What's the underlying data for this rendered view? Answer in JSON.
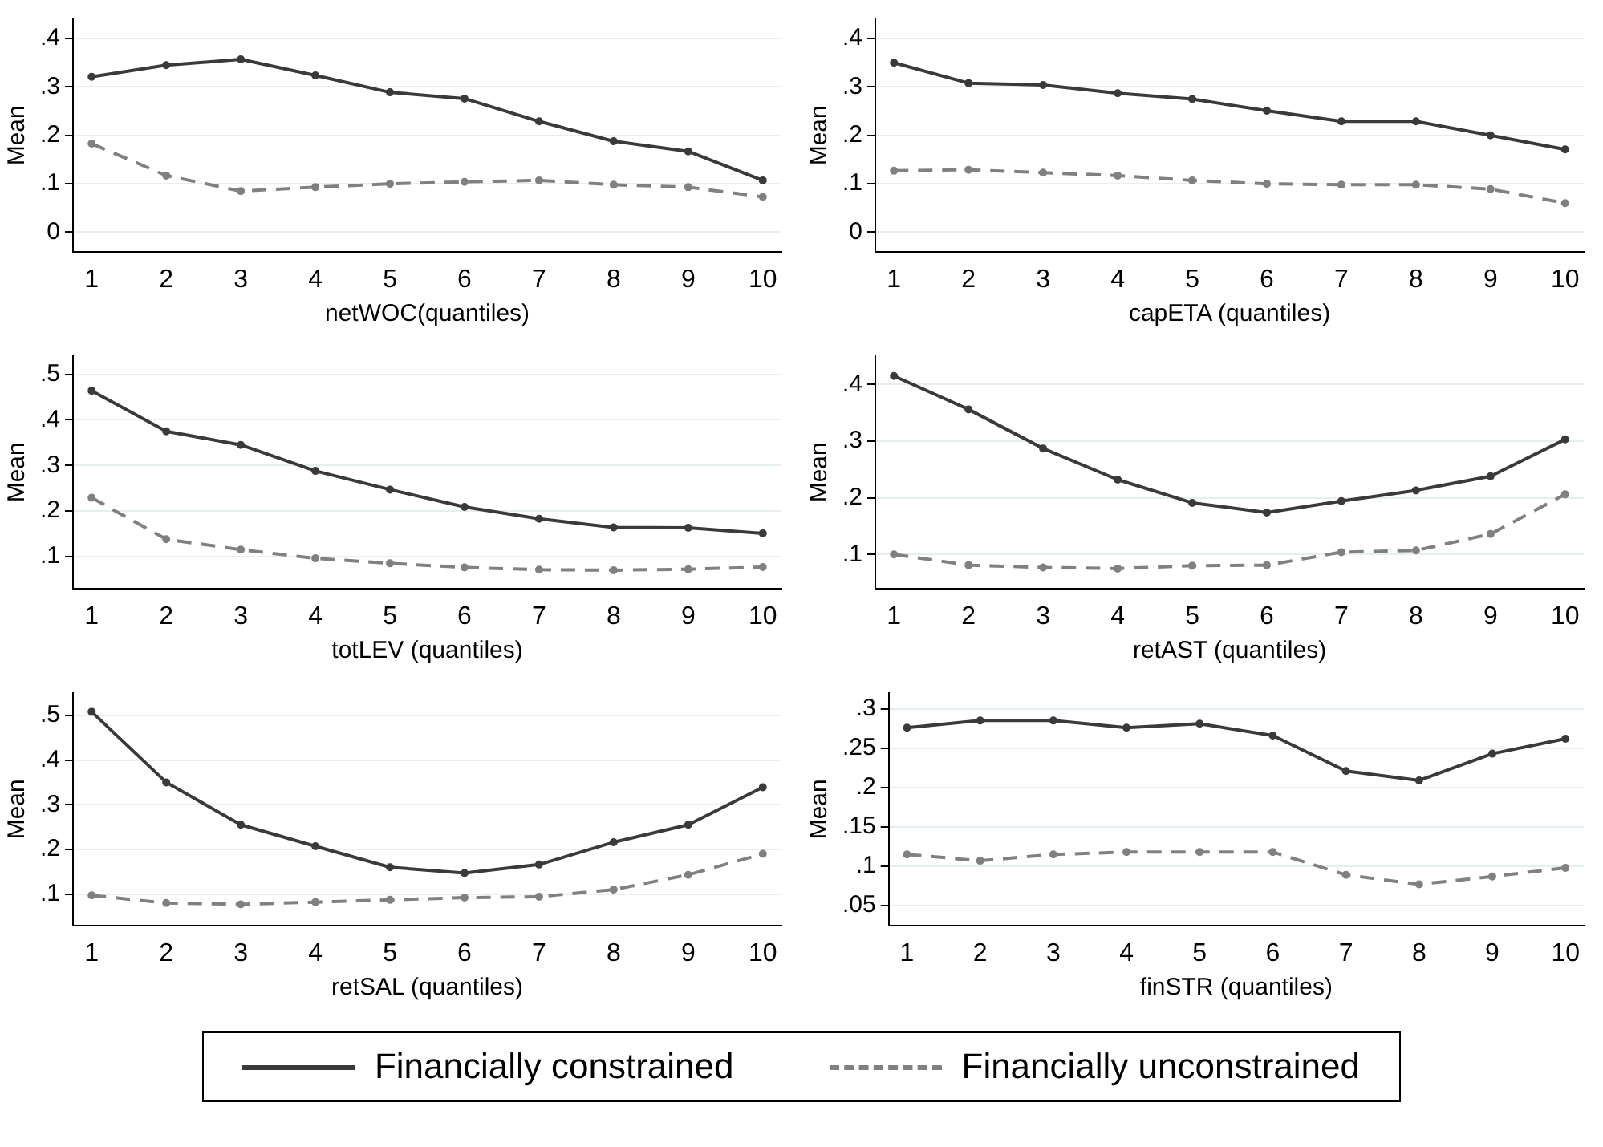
{
  "chart_data": [
    {
      "type": "line",
      "xlabel": "netWOC(quantiles)",
      "ylabel": "Mean",
      "x": [
        1,
        2,
        3,
        4,
        5,
        6,
        7,
        8,
        9,
        10
      ],
      "xlim": [
        0.75,
        10.25
      ],
      "xticks": [
        1,
        2,
        3,
        4,
        5,
        6,
        7,
        8,
        9,
        10
      ],
      "ylim": [
        -0.04,
        0.44
      ],
      "yticks": [
        {
          "value": 0,
          "label": "0"
        },
        {
          "value": 0.1,
          "label": ".1"
        },
        {
          "value": 0.2,
          "label": ".2"
        },
        {
          "value": 0.3,
          "label": ".3"
        },
        {
          "value": 0.4,
          "label": ".4"
        }
      ],
      "grid": "y",
      "marker": "circle",
      "legend": false,
      "series": [
        {
          "color": "#3a3a3a",
          "line_style": "solid",
          "values": [
            0.321,
            0.345,
            0.357,
            0.324,
            0.289,
            0.276,
            0.229,
            0.188,
            0.167,
            0.107
          ]
        },
        {
          "color": "#808080",
          "line_style": "dashed",
          "values": [
            0.183,
            0.117,
            0.085,
            0.093,
            0.1,
            0.104,
            0.107,
            0.098,
            0.093,
            0.073
          ]
        }
      ]
    },
    {
      "type": "line",
      "xlabel": "capETA (quantiles)",
      "ylabel": "Mean",
      "x": [
        1,
        2,
        3,
        4,
        5,
        6,
        7,
        8,
        9,
        10
      ],
      "xlim": [
        0.75,
        10.25
      ],
      "xticks": [
        1,
        2,
        3,
        4,
        5,
        6,
        7,
        8,
        9,
        10
      ],
      "ylim": [
        -0.04,
        0.44
      ],
      "yticks": [
        {
          "value": 0,
          "label": "0"
        },
        {
          "value": 0.1,
          "label": ".1"
        },
        {
          "value": 0.2,
          "label": ".2"
        },
        {
          "value": 0.3,
          "label": ".3"
        },
        {
          "value": 0.4,
          "label": ".4"
        }
      ],
      "grid": "y",
      "marker": "circle",
      "legend": false,
      "series": [
        {
          "color": "#3a3a3a",
          "line_style": "solid",
          "values": [
            0.35,
            0.308,
            0.304,
            0.287,
            0.275,
            0.251,
            0.229,
            0.229,
            0.2,
            0.171
          ]
        },
        {
          "color": "#808080",
          "line_style": "dashed",
          "values": [
            0.127,
            0.129,
            0.123,
            0.117,
            0.107,
            0.1,
            0.098,
            0.098,
            0.089,
            0.06
          ]
        }
      ]
    },
    {
      "type": "line",
      "xlabel": "totLEV (quantiles)",
      "ylabel": "Mean",
      "x": [
        1,
        2,
        3,
        4,
        5,
        6,
        7,
        8,
        9,
        10
      ],
      "xlim": [
        0.75,
        10.25
      ],
      "xticks": [
        1,
        2,
        3,
        4,
        5,
        6,
        7,
        8,
        9,
        10
      ],
      "ylim": [
        0.03,
        0.54
      ],
      "yticks": [
        {
          "value": 0.1,
          "label": ".1"
        },
        {
          "value": 0.2,
          "label": ".2"
        },
        {
          "value": 0.3,
          "label": ".3"
        },
        {
          "value": 0.4,
          "label": ".4"
        },
        {
          "value": 0.5,
          "label": ".5"
        }
      ],
      "grid": "y",
      "marker": "circle",
      "legend": false,
      "series": [
        {
          "color": "#3a3a3a",
          "line_style": "solid",
          "values": [
            0.464,
            0.375,
            0.345,
            0.288,
            0.247,
            0.209,
            0.183,
            0.164,
            0.163,
            0.151
          ]
        },
        {
          "color": "#808080",
          "line_style": "dashed",
          "values": [
            0.229,
            0.138,
            0.115,
            0.096,
            0.085,
            0.076,
            0.071,
            0.07,
            0.072,
            0.077
          ]
        }
      ]
    },
    {
      "type": "line",
      "xlabel": "retAST (quantiles)",
      "ylabel": "Mean",
      "x": [
        1,
        2,
        3,
        4,
        5,
        6,
        7,
        8,
        9,
        10
      ],
      "xlim": [
        0.75,
        10.25
      ],
      "xticks": [
        1,
        2,
        3,
        4,
        5,
        6,
        7,
        8,
        9,
        10
      ],
      "ylim": [
        0.04,
        0.45
      ],
      "yticks": [
        {
          "value": 0.1,
          "label": ".1"
        },
        {
          "value": 0.2,
          "label": ".2"
        },
        {
          "value": 0.3,
          "label": ".3"
        },
        {
          "value": 0.4,
          "label": ".4"
        }
      ],
      "grid": "y",
      "marker": "circle",
      "legend": false,
      "series": [
        {
          "color": "#3a3a3a",
          "line_style": "solid",
          "values": [
            0.415,
            0.356,
            0.287,
            0.232,
            0.191,
            0.174,
            0.194,
            0.213,
            0.238,
            0.303
          ]
        },
        {
          "color": "#808080",
          "line_style": "dashed",
          "values": [
            0.1,
            0.081,
            0.077,
            0.075,
            0.08,
            0.081,
            0.104,
            0.107,
            0.136,
            0.206
          ]
        }
      ]
    },
    {
      "type": "line",
      "xlabel": "retSAL (quantiles)",
      "ylabel": "Mean",
      "x": [
        1,
        2,
        3,
        4,
        5,
        6,
        7,
        8,
        9,
        10
      ],
      "xlim": [
        0.75,
        10.25
      ],
      "xticks": [
        1,
        2,
        3,
        4,
        5,
        6,
        7,
        8,
        9,
        10
      ],
      "ylim": [
        0.03,
        0.55
      ],
      "yticks": [
        {
          "value": 0.1,
          "label": ".1"
        },
        {
          "value": 0.2,
          "label": ".2"
        },
        {
          "value": 0.3,
          "label": ".3"
        },
        {
          "value": 0.4,
          "label": ".4"
        },
        {
          "value": 0.5,
          "label": ".5"
        }
      ],
      "grid": "y",
      "marker": "circle",
      "legend": false,
      "series": [
        {
          "color": "#3a3a3a",
          "line_style": "solid",
          "values": [
            0.508,
            0.35,
            0.255,
            0.207,
            0.16,
            0.147,
            0.166,
            0.216,
            0.255,
            0.339
          ]
        },
        {
          "color": "#808080",
          "line_style": "dashed",
          "values": [
            0.097,
            0.08,
            0.077,
            0.082,
            0.087,
            0.092,
            0.094,
            0.11,
            0.143,
            0.19
          ]
        }
      ]
    },
    {
      "type": "line",
      "xlabel": "finSTR (quantiles)",
      "ylabel": "Mean",
      "x": [
        1,
        2,
        3,
        4,
        5,
        6,
        7,
        8,
        9,
        10
      ],
      "xlim": [
        0.75,
        10.25
      ],
      "xticks": [
        1,
        2,
        3,
        4,
        5,
        6,
        7,
        8,
        9,
        10
      ],
      "ylim": [
        0.025,
        0.32
      ],
      "yticks": [
        {
          "value": 0.05,
          "label": ".05"
        },
        {
          "value": 0.1,
          "label": ".1"
        },
        {
          "value": 0.15,
          "label": ".15"
        },
        {
          "value": 0.2,
          "label": ".2"
        },
        {
          "value": 0.25,
          "label": ".25"
        },
        {
          "value": 0.3,
          "label": ".3"
        }
      ],
      "grid": "y",
      "marker": "circle",
      "legend": "bottom",
      "series": [
        {
          "name": "Financially constrained",
          "color": "#3a3a3a",
          "line_style": "solid",
          "values": [
            0.276,
            0.285,
            0.285,
            0.276,
            0.281,
            0.266,
            0.221,
            0.209,
            0.243,
            0.262
          ]
        },
        {
          "name": "Financially unconstrained",
          "color": "#808080",
          "line_style": "dashed",
          "values": [
            0.115,
            0.107,
            0.115,
            0.118,
            0.118,
            0.118,
            0.089,
            0.077,
            0.087,
            0.098
          ]
        }
      ]
    }
  ]
}
